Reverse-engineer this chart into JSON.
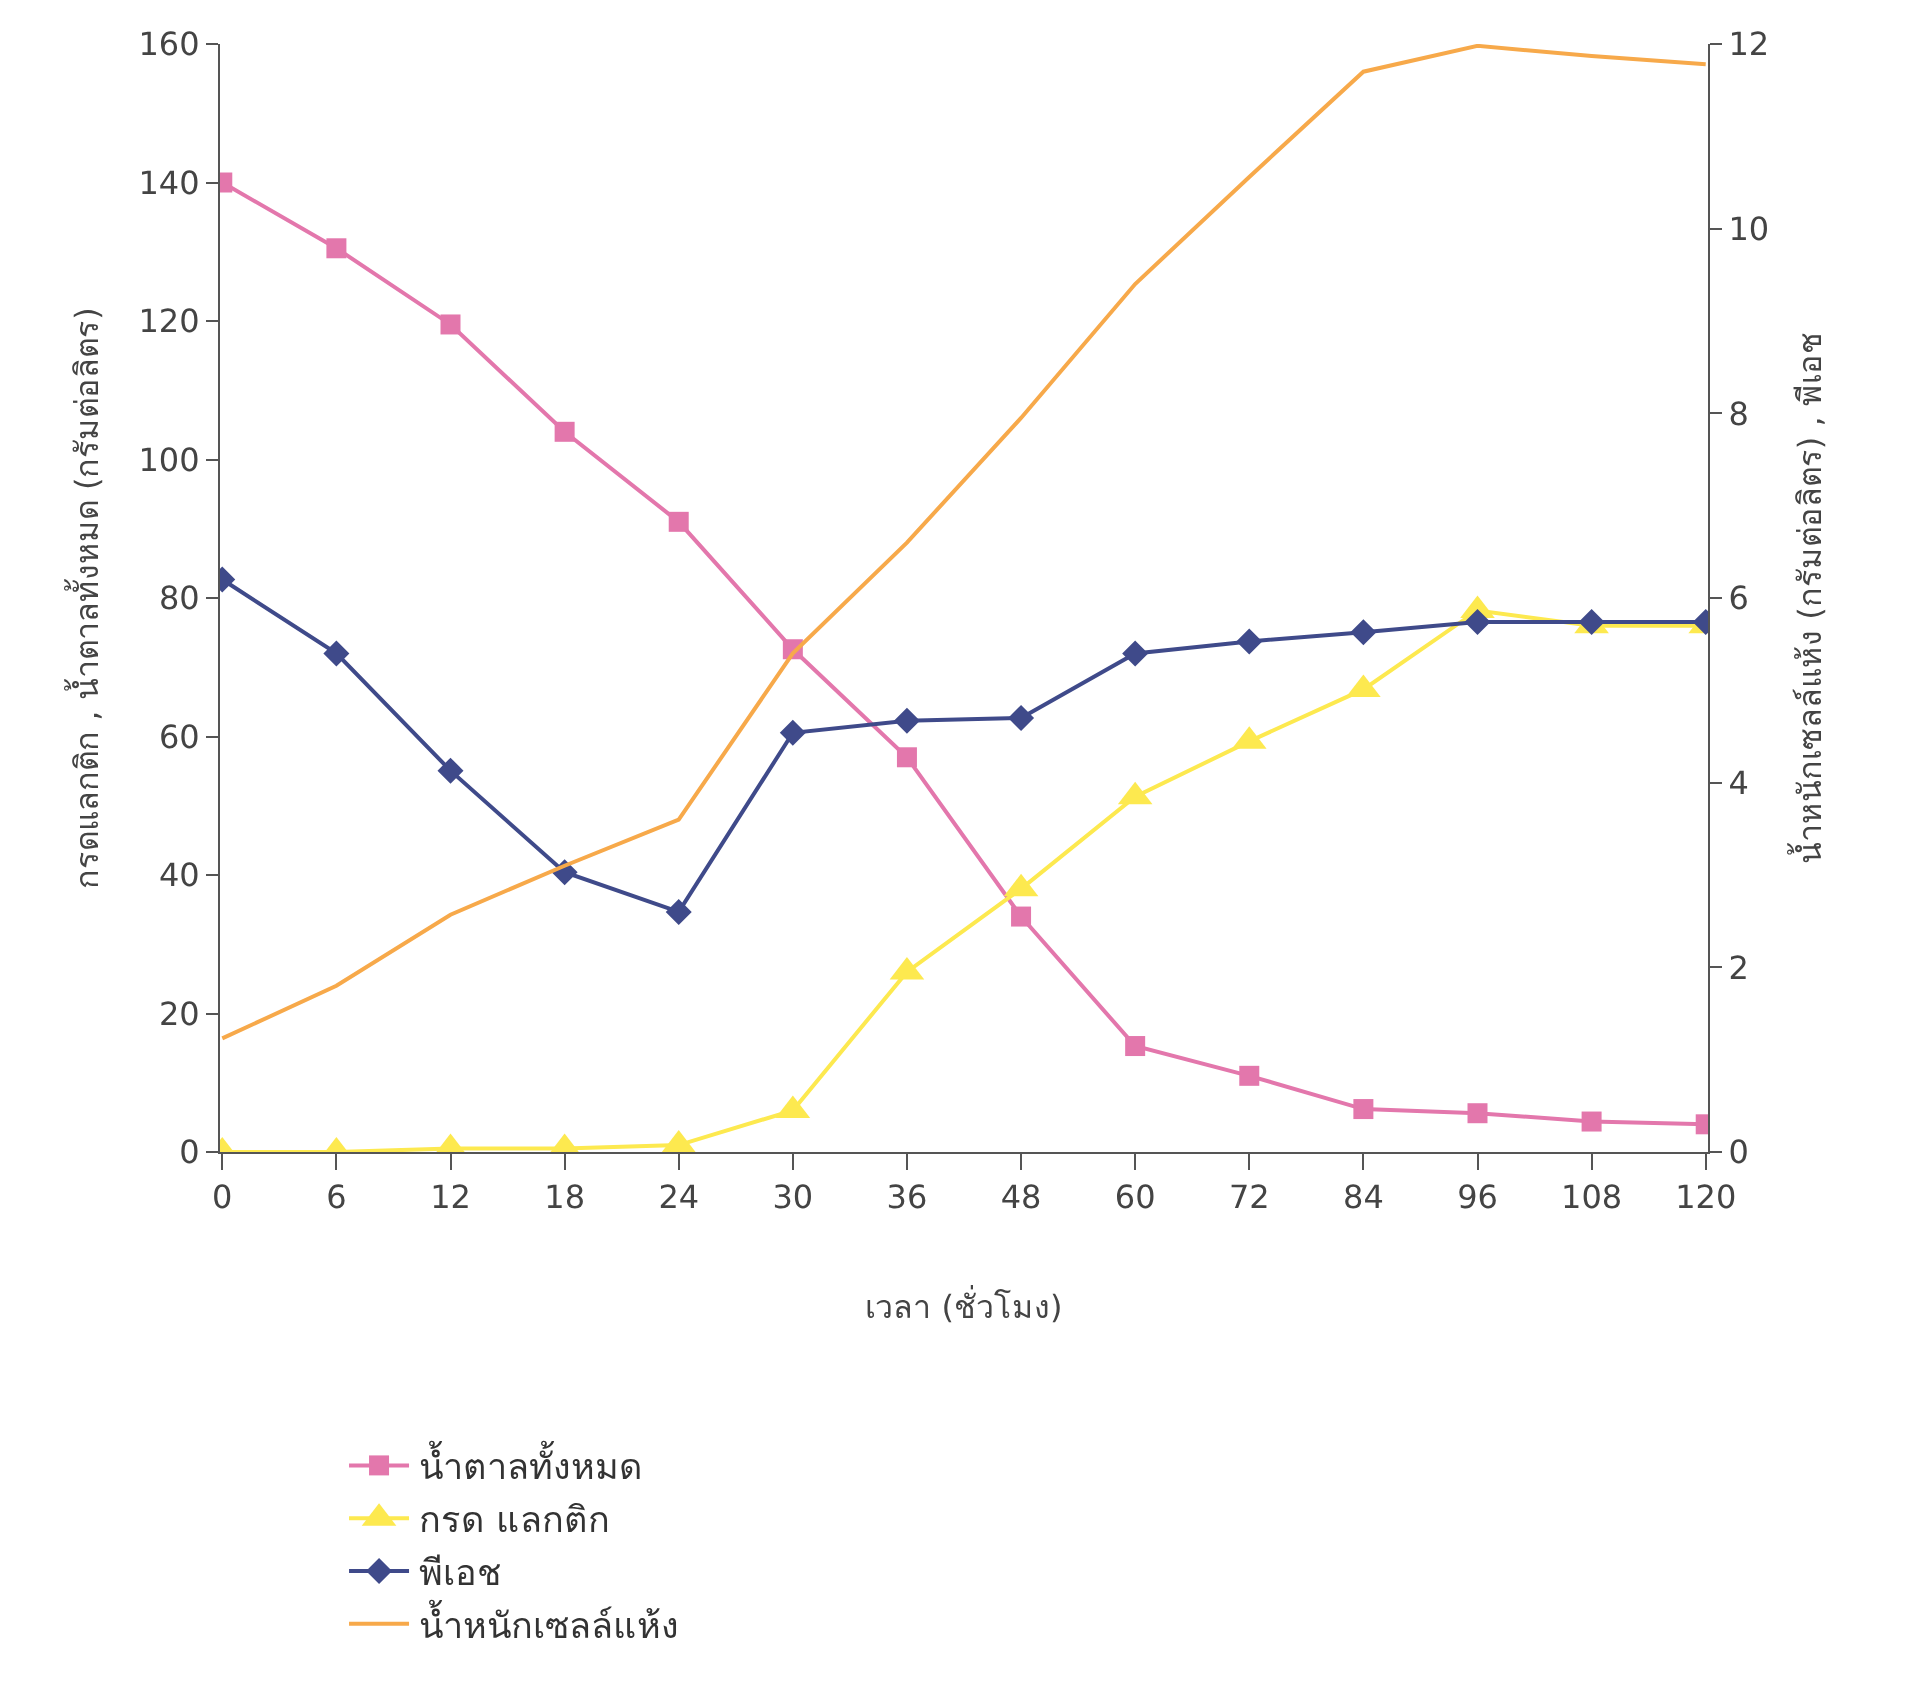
{
  "chart_data": {
    "type": "line",
    "xlabel": "เวลา (ชั่วโมง)",
    "ylabel": "กรดแลกติก , น้ำตาลทั้งหมด (กรัมต่อลิตร)",
    "y2label": "น้ำหนักเซลล์แห้ง (กรัมต่อลิตร) , พีเอช",
    "categories": [
      "0",
      "6",
      "12",
      "18",
      "24",
      "30",
      "36",
      "48",
      "60",
      "72",
      "84",
      "96",
      "108",
      "120"
    ],
    "series": [
      {
        "name": "น้ำตาลทั้งหมด",
        "color": "#e377ac",
        "marker": "square",
        "values": [
          140,
          130.5,
          119.5,
          104,
          91,
          72.6,
          57,
          34,
          15.3,
          11,
          6.2,
          5.6,
          4.4,
          4
        ]
      },
      {
        "name": "กรด แลกติก",
        "color": "#fde94f",
        "marker": "triangle",
        "values": [
          0,
          0,
          0.5,
          0.5,
          1,
          6,
          26,
          38,
          51.3,
          59.3,
          66.8,
          78.2,
          76,
          76
        ]
      },
      {
        "name": "พีเอช",
        "color": "#3f4a8a",
        "marker": "diamond",
        "axis": "y2",
        "values": [
          6.2,
          5.4,
          4.13,
          3.03,
          2.6,
          4.54,
          4.67,
          4.7,
          5.4,
          5.53,
          5.63,
          5.74,
          5.74,
          5.74
        ]
      },
      {
        "name": "น้ำหนักเซลล์แห้ง",
        "color": "#f7a94a",
        "marker": "none",
        "axis": "y2",
        "values": [
          1.23,
          1.8,
          2.57,
          3.1,
          3.6,
          5.4,
          6.6,
          7.95,
          9.4,
          10.56,
          11.7,
          11.98,
          11.87,
          11.78
        ]
      }
    ],
    "ylim": [
      0,
      160
    ],
    "yticks": [
      0,
      20,
      40,
      60,
      80,
      100,
      120,
      140,
      160
    ],
    "y2lim": [
      0,
      12
    ],
    "y2ticks": [
      0,
      2,
      4,
      6,
      8,
      10,
      12
    ],
    "legend": "bottom",
    "line_style": "solid"
  }
}
